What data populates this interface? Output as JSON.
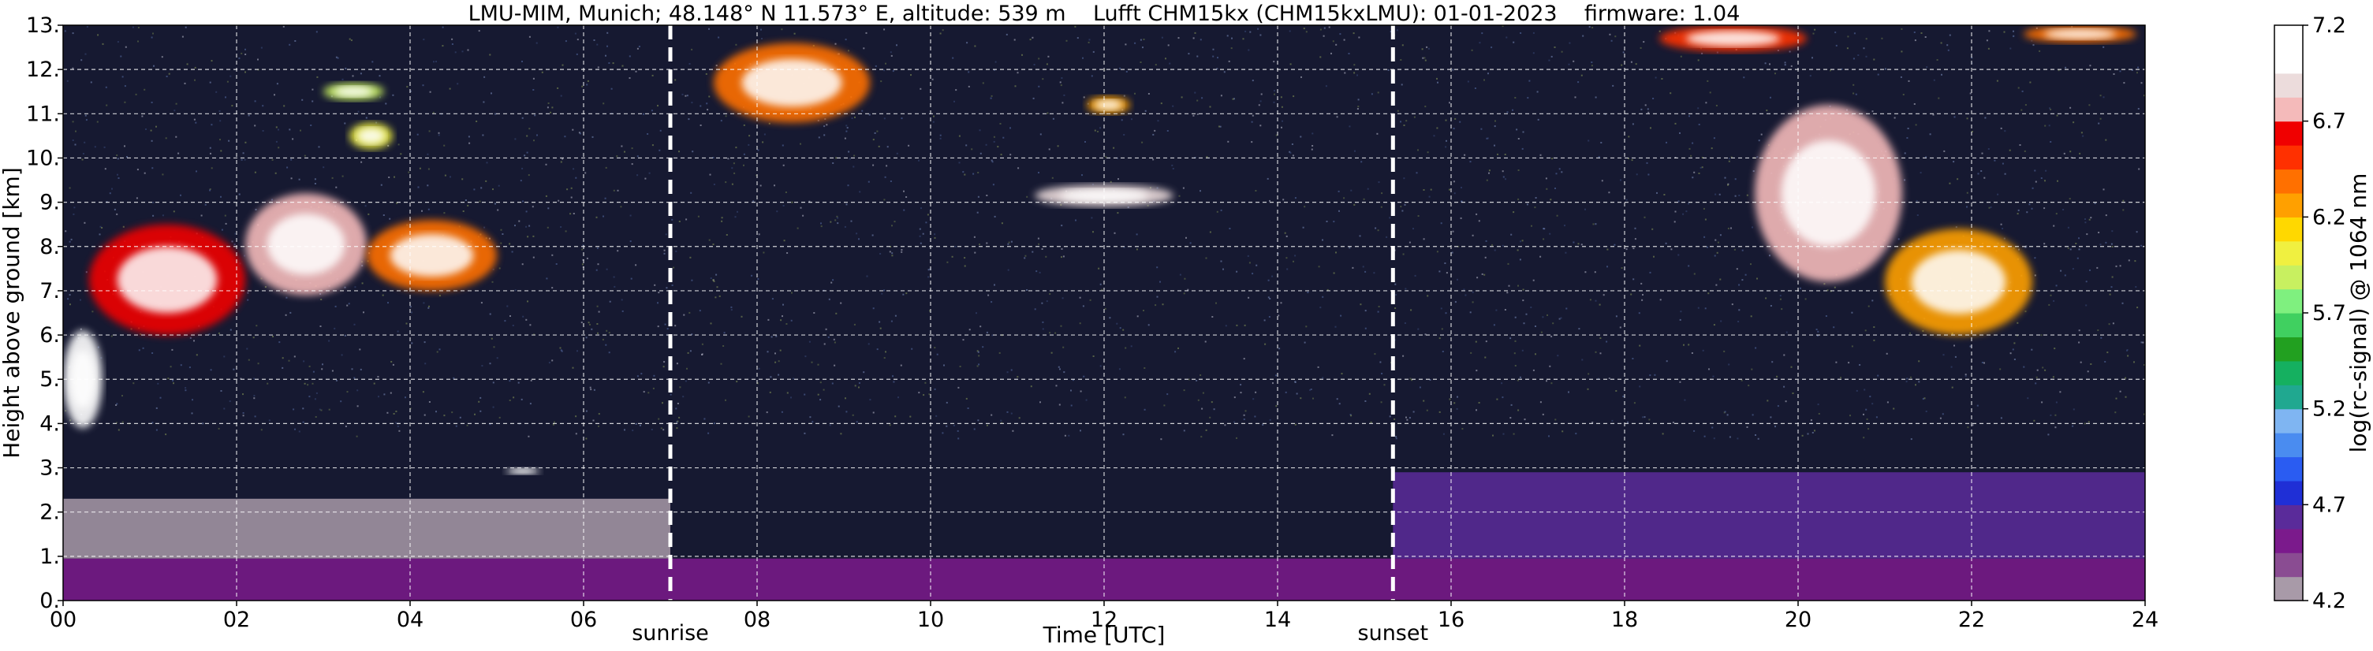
{
  "chart_data": {
    "type": "heatmap",
    "title": "LMU-MIM, Munich; 48.148° N 11.573° E, altitude: 539 m    Lufft CHM15kx (CHM15kxLMU): 01-01-2023    firmware: 1.04",
    "xlabel": "Time [UTC]",
    "ylabel": "Height above ground [km]",
    "colorbar_label": "log(rc-signal) @ 1064 nm",
    "xlim": [
      0,
      24
    ],
    "ylim": [
      0,
      13
    ],
    "clim": [
      4.2,
      7.2
    ],
    "grid": true,
    "x_ticks": [
      {
        "value": 0,
        "label": "00"
      },
      {
        "value": 2,
        "label": "02"
      },
      {
        "value": 4,
        "label": "04"
      },
      {
        "value": 6,
        "label": "06"
      },
      {
        "value": 8,
        "label": "08"
      },
      {
        "value": 10,
        "label": "10"
      },
      {
        "value": 12,
        "label": "12"
      },
      {
        "value": 14,
        "label": "14"
      },
      {
        "value": 16,
        "label": "16"
      },
      {
        "value": 18,
        "label": "18"
      },
      {
        "value": 20,
        "label": "20"
      },
      {
        "value": 22,
        "label": "22"
      },
      {
        "value": 24,
        "label": "24"
      }
    ],
    "y_ticks": [
      {
        "value": 0,
        "label": "0."
      },
      {
        "value": 1,
        "label": "1."
      },
      {
        "value": 2,
        "label": "2."
      },
      {
        "value": 3,
        "label": "3."
      },
      {
        "value": 4,
        "label": "4."
      },
      {
        "value": 5,
        "label": "5."
      },
      {
        "value": 6,
        "label": "6."
      },
      {
        "value": 7,
        "label": "7."
      },
      {
        "value": 8,
        "label": "8."
      },
      {
        "value": 9,
        "label": "9."
      },
      {
        "value": 10,
        "label": "10."
      },
      {
        "value": 11,
        "label": "11."
      },
      {
        "value": 12,
        "label": "12."
      },
      {
        "value": 13,
        "label": "13."
      }
    ],
    "colorbar_ticks": [
      {
        "value": 4.2,
        "label": "4.2"
      },
      {
        "value": 4.7,
        "label": "4.7"
      },
      {
        "value": 5.2,
        "label": "5.2"
      },
      {
        "value": 5.7,
        "label": "5.7"
      },
      {
        "value": 6.2,
        "label": "6.2"
      },
      {
        "value": 6.7,
        "label": "6.7"
      },
      {
        "value": 7.2,
        "label": "7.2"
      }
    ],
    "vertical_markers": [
      {
        "label": "sunrise",
        "x": 7.0
      },
      {
        "label": "sunset",
        "x": 15.33
      }
    ],
    "colorscale": [
      "#a89aa8",
      "#8a4c92",
      "#7b1a8c",
      "#5a2b9a",
      "#1f2fd6",
      "#2a5cf2",
      "#4a8cf0",
      "#7fb5f2",
      "#20a890",
      "#15b060",
      "#22a020",
      "#40d060",
      "#7ff07f",
      "#c8f060",
      "#f0f040",
      "#ffd800",
      "#ffa000",
      "#ff7000",
      "#ff3000",
      "#f00000",
      "#f4baba",
      "#ecdcdc",
      "#ffffff",
      "#ffffff"
    ],
    "background_color": "#161931",
    "regions": [
      {
        "type": "low_layer",
        "x0": 0,
        "x1": 24,
        "y0": 0,
        "y1": 0.95,
        "level": 4.45
      },
      {
        "type": "boundary_layer_night",
        "x0": 0,
        "x1": 7.0,
        "y0": 0.95,
        "y1": 2.3,
        "level": 4.3
      },
      {
        "type": "boundary_layer_night",
        "x0": 15.33,
        "x1": 24,
        "y0": 0.95,
        "y1": 2.9,
        "level": 4.65
      },
      {
        "type": "cloud",
        "x0": 0.0,
        "x1": 0.45,
        "y0": 3.9,
        "y1": 6.1,
        "level": 7.0
      },
      {
        "type": "cloud",
        "x0": 0.3,
        "x1": 2.1,
        "y0": 6.0,
        "y1": 8.5,
        "level": 6.6
      },
      {
        "type": "cloud",
        "x0": 2.1,
        "x1": 3.5,
        "y0": 6.9,
        "y1": 9.2,
        "level": 6.7
      },
      {
        "type": "cloud",
        "x0": 3.5,
        "x1": 5.0,
        "y0": 7.0,
        "y1": 8.6,
        "level": 6.4
      },
      {
        "type": "cloud",
        "x0": 3.0,
        "x1": 3.7,
        "y0": 11.3,
        "y1": 11.7,
        "level": 5.9
      },
      {
        "type": "cloud",
        "x0": 3.3,
        "x1": 3.8,
        "y0": 10.2,
        "y1": 10.8,
        "level": 6.0
      },
      {
        "type": "cloud",
        "x0": 5.1,
        "x1": 5.5,
        "y0": 2.85,
        "y1": 3.0,
        "level": 7.0
      },
      {
        "type": "cloud",
        "x0": 7.5,
        "x1": 9.3,
        "y0": 10.8,
        "y1": 12.6,
        "level": 6.4
      },
      {
        "type": "cloud",
        "x0": 11.2,
        "x1": 12.8,
        "y0": 8.9,
        "y1": 9.4,
        "level": 6.9
      },
      {
        "type": "cloud",
        "x0": 11.8,
        "x1": 12.3,
        "y0": 11.0,
        "y1": 11.4,
        "level": 6.2
      },
      {
        "type": "cloud",
        "x0": 19.5,
        "x1": 21.2,
        "y0": 7.2,
        "y1": 11.2,
        "level": 6.8
      },
      {
        "type": "cloud",
        "x0": 21.0,
        "x1": 22.7,
        "y0": 6.0,
        "y1": 8.4,
        "level": 6.3
      },
      {
        "type": "cloud",
        "x0": 18.4,
        "x1": 20.1,
        "y0": 12.4,
        "y1": 13.0,
        "level": 6.5
      },
      {
        "type": "cloud",
        "x0": 22.6,
        "x1": 23.9,
        "y0": 12.6,
        "y1": 13.0,
        "level": 6.4
      }
    ]
  }
}
